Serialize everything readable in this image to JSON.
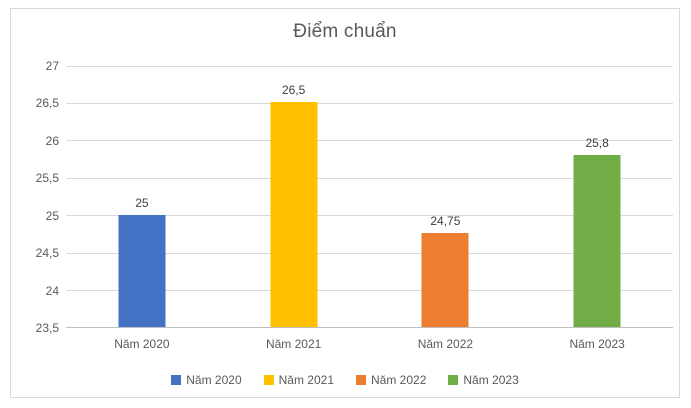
{
  "chart_title": "Điểm chuẩn",
  "chart_data": {
    "type": "bar",
    "title": "Điểm chuẩn",
    "categories": [
      "Năm 2020",
      "Năm 2021",
      "Năm 2022",
      "Năm 2023"
    ],
    "values": [
      25,
      26.5,
      24.75,
      25.8
    ],
    "value_labels": [
      "25",
      "26,5",
      "24,75",
      "25,8"
    ],
    "bar_colors": [
      "#4472C4",
      "#FFC000",
      "#ED7D31",
      "#70AD47"
    ],
    "xlabel": "",
    "ylabel": "",
    "ylim": [
      23.5,
      27
    ],
    "y_tick_step": 0.5,
    "y_tick_labels": [
      "23,5",
      "24",
      "24,5",
      "25",
      "25,5",
      "26",
      "26,5",
      "27"
    ],
    "grid": true,
    "legend": {
      "position": "bottom",
      "entries": [
        {
          "label": "Năm 2020",
          "color": "#4472C4"
        },
        {
          "label": "Năm 2021",
          "color": "#FFC000"
        },
        {
          "label": "Năm 2022",
          "color": "#ED7D31"
        },
        {
          "label": "Năm 2023",
          "color": "#70AD47"
        }
      ]
    }
  },
  "style_colors": {
    "gridline": "#D9D9D9",
    "axis_line": "#BFBFBF",
    "frame_border": "#D9D9D9",
    "title_text": "#595959",
    "tick_text": "#595959",
    "data_label_text": "#404040"
  }
}
